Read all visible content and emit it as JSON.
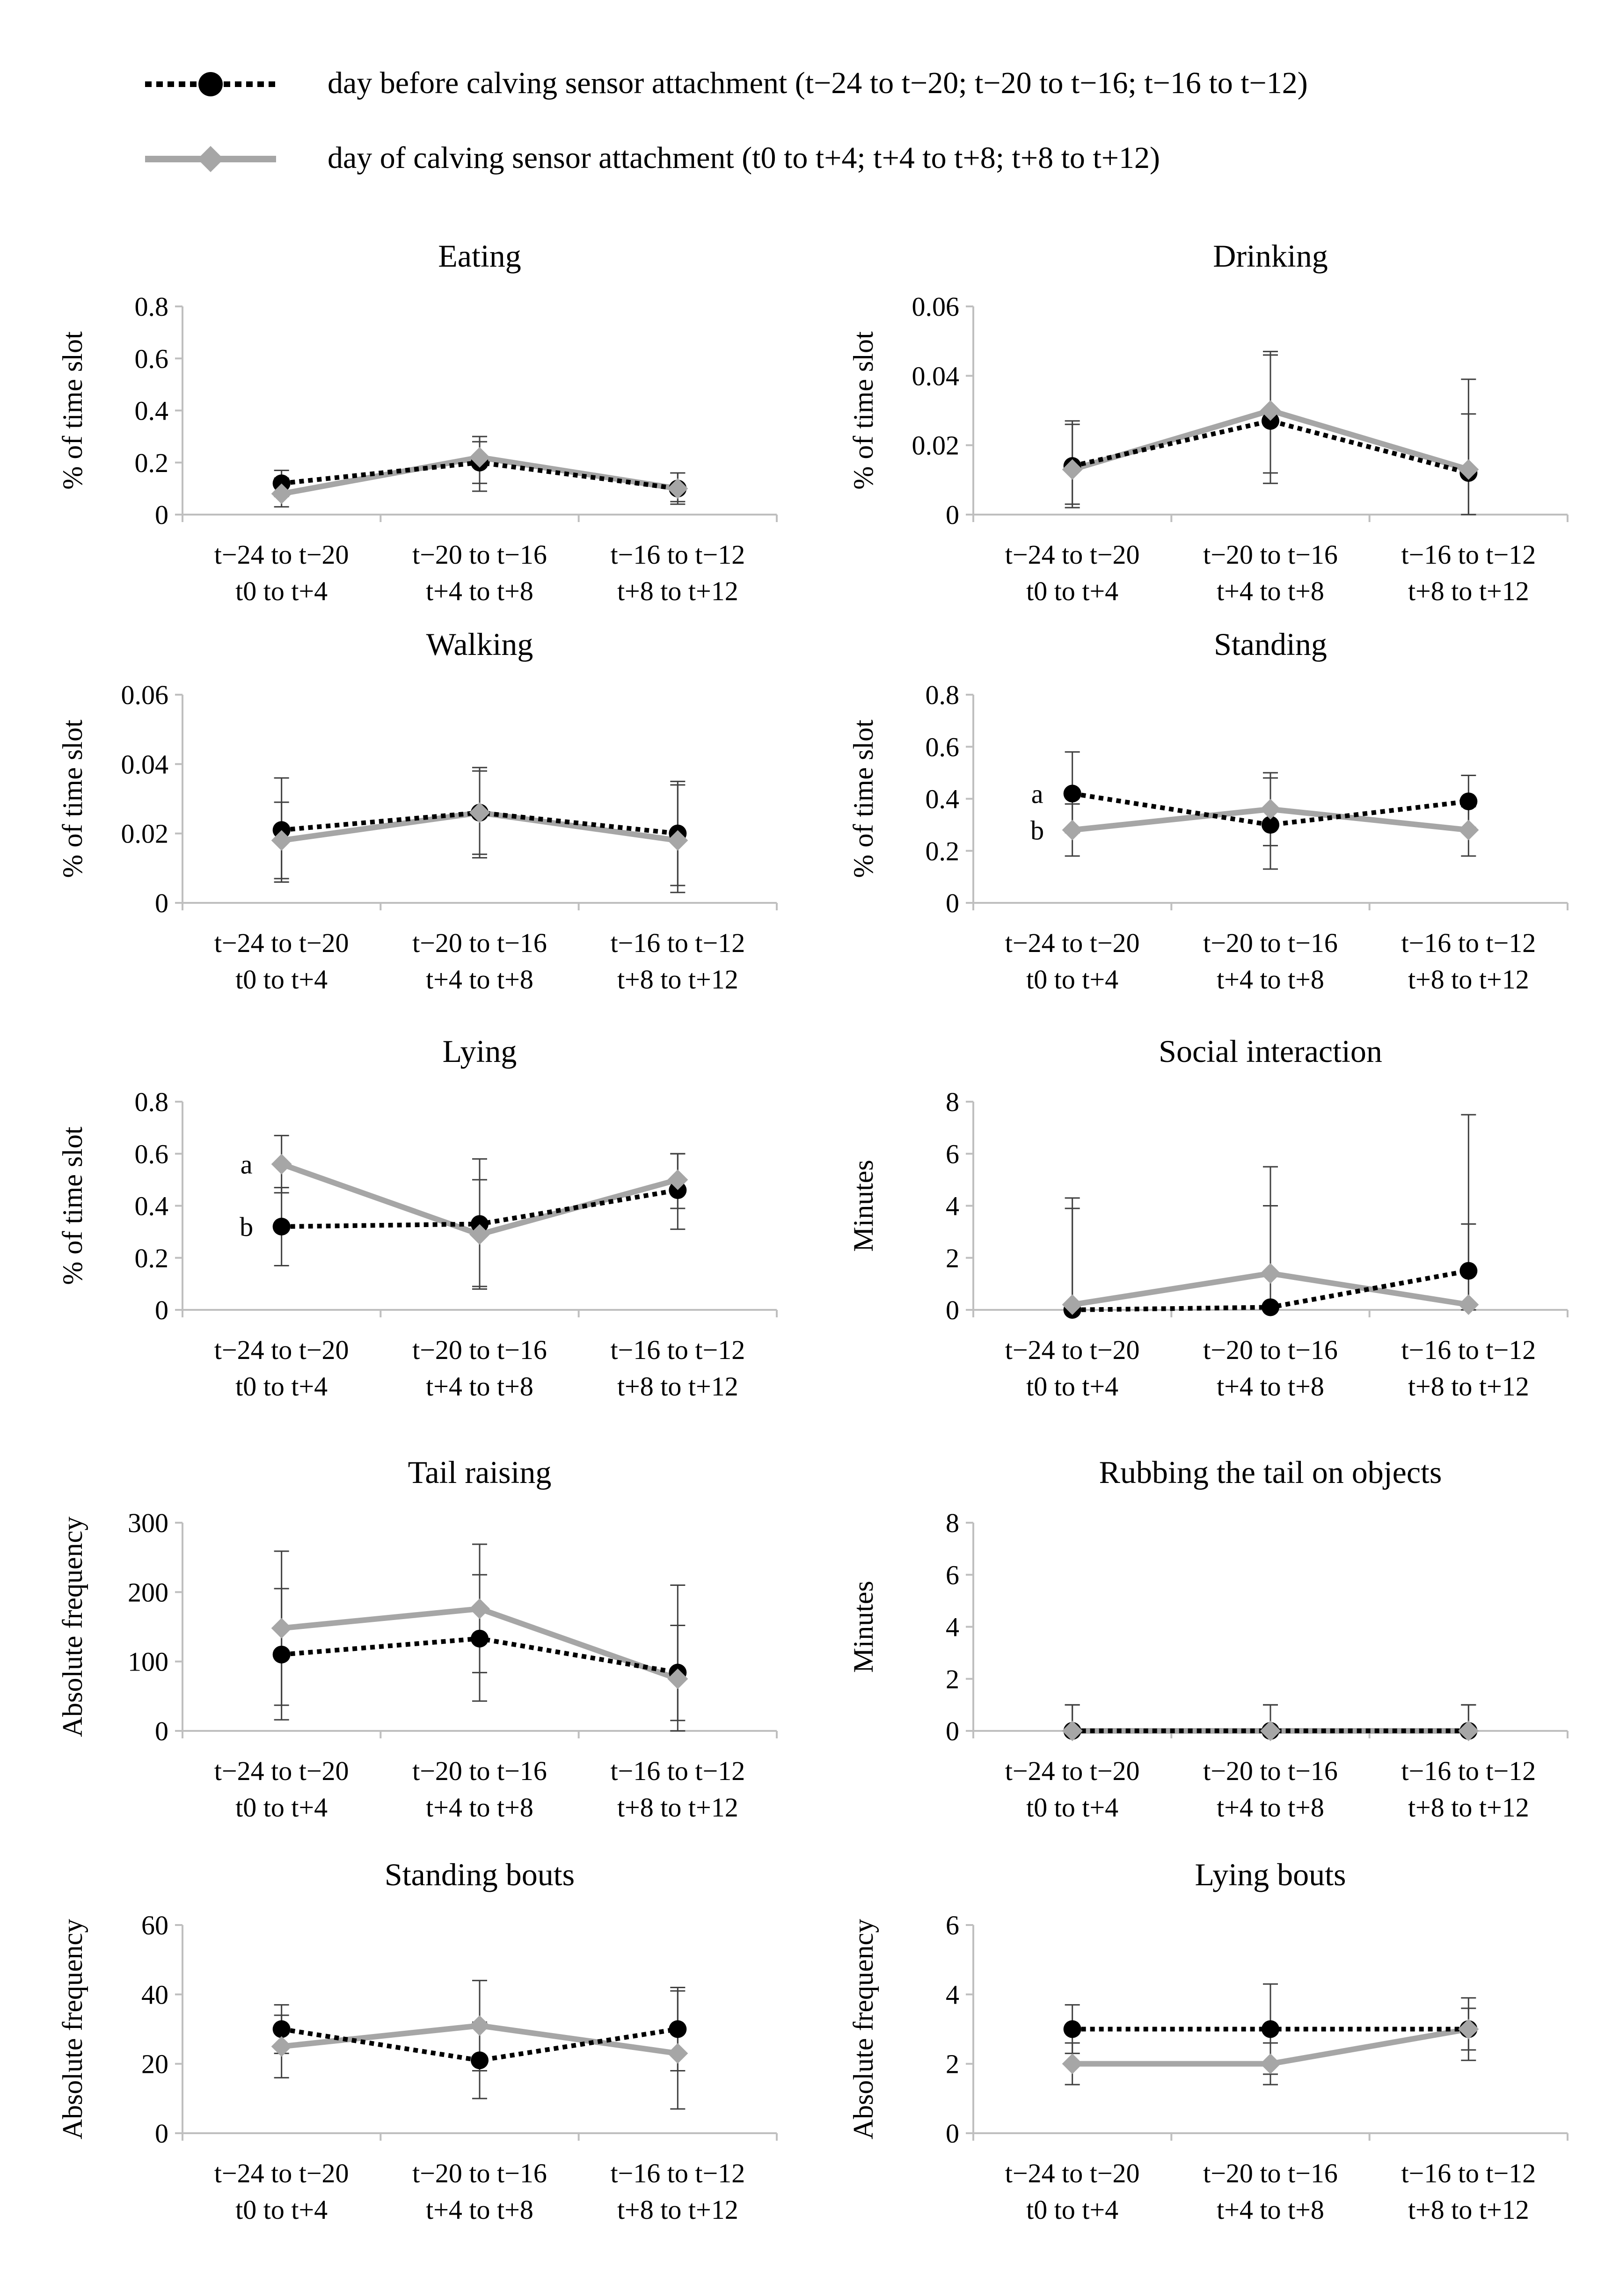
{
  "legend": [
    {
      "name": "day before calving sensor attachment (t−24 to t−20; t−20 to t−16; t−16 to t−12)",
      "style": "dotted-circle",
      "color": "#000000"
    },
    {
      "name": "day of calving sensor attachment (t0 to t+4; t+4 to t+8; t+8 to t+12)",
      "style": "solid-diamond",
      "color": "#a6a6a6"
    }
  ],
  "colors": {
    "before": "#000000",
    "of": "#a6a6a6",
    "axis": "#bfbfbf",
    "errorbar": "#404040"
  },
  "chart_data": [
    {
      "type": "line",
      "title": "Eating",
      "ylabel": "% of time slot",
      "categories": [
        [
          "t−24 to t−20",
          "t0 to t+4"
        ],
        [
          "t−20 to t−16",
          "t+4 to t+8"
        ],
        [
          "t−16 to t−12",
          "t+8 to t+12"
        ]
      ],
      "yticks": [
        "0",
        "0.2",
        "0.4",
        "0.6",
        "0.8"
      ],
      "ylim": [
        0,
        0.8
      ],
      "series": [
        {
          "name": "before",
          "values": [
            0.12,
            0.2,
            0.1
          ],
          "err_hi": [
            0.17,
            0.28,
            0.16
          ],
          "err_lo": [
            0.07,
            0.12,
            0.05
          ]
        },
        {
          "name": "of",
          "values": [
            0.08,
            0.22,
            0.1
          ],
          "err_hi": [
            0.14,
            0.3,
            0.16
          ],
          "err_lo": [
            0.03,
            0.09,
            0.04
          ]
        }
      ],
      "annotations": []
    },
    {
      "type": "line",
      "title": "Drinking",
      "ylabel": "% of time slot",
      "categories": [
        [
          "t−24 to t−20",
          "t0 to t+4"
        ],
        [
          "t−20 to t−16",
          "t+4 to t+8"
        ],
        [
          "t−16 to t−12",
          "t+8 to t+12"
        ]
      ],
      "yticks": [
        "0",
        "0.02",
        "0.04",
        "0.06"
      ],
      "ylim": [
        0,
        0.06
      ],
      "series": [
        {
          "name": "before",
          "values": [
            0.014,
            0.027,
            0.012
          ],
          "err_hi": [
            0.026,
            0.046,
            0.029
          ],
          "err_lo": [
            0.003,
            0.009,
            0.0
          ]
        },
        {
          "name": "of",
          "values": [
            0.013,
            0.03,
            0.013
          ],
          "err_hi": [
            0.027,
            0.047,
            0.039
          ],
          "err_lo": [
            0.002,
            0.012,
            0.0
          ]
        }
      ],
      "annotations": []
    },
    {
      "type": "line",
      "title": "Walking",
      "ylabel": "% of time slot",
      "categories": [
        [
          "t−24 to t−20",
          "t0 to t+4"
        ],
        [
          "t−20 to t−16",
          "t+4 to t+8"
        ],
        [
          "t−16 to t−12",
          "t+8 to t+12"
        ]
      ],
      "yticks": [
        "0",
        "0.02",
        "0.04",
        "0.06"
      ],
      "ylim": [
        0,
        0.06
      ],
      "series": [
        {
          "name": "before",
          "values": [
            0.021,
            0.026,
            0.02
          ],
          "err_hi": [
            0.029,
            0.038,
            0.034
          ],
          "err_lo": [
            0.006,
            0.014,
            0.005
          ]
        },
        {
          "name": "of",
          "values": [
            0.018,
            0.026,
            0.018
          ],
          "err_hi": [
            0.036,
            0.039,
            0.035
          ],
          "err_lo": [
            0.007,
            0.013,
            0.003
          ]
        }
      ],
      "annotations": []
    },
    {
      "type": "line",
      "title": "Standing",
      "ylabel": "% of time slot",
      "categories": [
        [
          "t−24 to t−20",
          "t0 to t+4"
        ],
        [
          "t−20 to t−16",
          "t+4 to t+8"
        ],
        [
          "t−16 to t−12",
          "t+8 to t+12"
        ]
      ],
      "yticks": [
        "0",
        "0.2",
        "0.4",
        "0.6",
        "0.8"
      ],
      "ylim": [
        0,
        0.8
      ],
      "series": [
        {
          "name": "before",
          "values": [
            0.42,
            0.3,
            0.39
          ],
          "err_hi": [
            0.58,
            0.48,
            0.49
          ],
          "err_lo": [
            0.27,
            0.13,
            0.29
          ]
        },
        {
          "name": "of",
          "values": [
            0.28,
            0.36,
            0.28
          ],
          "err_hi": [
            0.38,
            0.5,
            0.37
          ],
          "err_lo": [
            0.18,
            0.22,
            0.18
          ]
        }
      ],
      "annotations": [
        {
          "text": "a",
          "series": "before",
          "index": 0
        },
        {
          "text": "b",
          "series": "of",
          "index": 0
        }
      ]
    },
    {
      "type": "line",
      "title": "Lying",
      "ylabel": "% of time slot",
      "categories": [
        [
          "t−24 to t−20",
          "t0 to t+4"
        ],
        [
          "t−20 to t−16",
          "t+4 to t+8"
        ],
        [
          "t−16 to t−12",
          "t+8 to t+12"
        ]
      ],
      "yticks": [
        "0",
        "0.2",
        "0.4",
        "0.6",
        "0.8"
      ],
      "ylim": [
        0,
        0.8
      ],
      "series": [
        {
          "name": "before",
          "values": [
            0.32,
            0.33,
            0.46
          ],
          "err_hi": [
            0.47,
            0.58,
            0.6
          ],
          "err_lo": [
            0.17,
            0.09,
            0.31
          ]
        },
        {
          "name": "of",
          "values": [
            0.56,
            0.29,
            0.5
          ],
          "err_hi": [
            0.67,
            0.5,
            0.6
          ],
          "err_lo": [
            0.45,
            0.08,
            0.39
          ]
        }
      ],
      "annotations": [
        {
          "text": "a",
          "series": "of",
          "index": 0
        },
        {
          "text": "b",
          "series": "before",
          "index": 0
        }
      ]
    },
    {
      "type": "line",
      "title": "Social interaction",
      "ylabel": "Minutes",
      "categories": [
        [
          "t−24 to t−20",
          "t0 to t+4"
        ],
        [
          "t−20 to t−16",
          "t+4 to t+8"
        ],
        [
          "t−16 to t−12",
          "t+8 to t+12"
        ]
      ],
      "yticks": [
        "0",
        "2",
        "4",
        "6",
        "8"
      ],
      "ylim": [
        0,
        8
      ],
      "series": [
        {
          "name": "before",
          "values": [
            0.0,
            0.1,
            1.5
          ],
          "err_hi": [
            3.9,
            4.0,
            3.3
          ],
          "err_lo": [
            0.0,
            0.0,
            0.0
          ]
        },
        {
          "name": "of",
          "values": [
            0.2,
            1.4,
            0.2
          ],
          "err_hi": [
            4.3,
            5.5,
            7.5
          ],
          "err_lo": [
            0.0,
            0.0,
            0.0
          ]
        }
      ],
      "annotations": []
    },
    {
      "type": "line",
      "title": "Tail raising",
      "ylabel": "Absolute frequency",
      "categories": [
        [
          "t−24 to t−20",
          "t0 to t+4"
        ],
        [
          "t−20 to t−16",
          "t+4 to t+8"
        ],
        [
          "t−16 to t−12",
          "t+8 to t+12"
        ]
      ],
      "yticks": [
        "0",
        "100",
        "200",
        "300"
      ],
      "ylim": [
        0,
        300
      ],
      "series": [
        {
          "name": "before",
          "values": [
            110,
            133,
            84
          ],
          "err_hi": [
            205,
            225,
            152
          ],
          "err_lo": [
            16,
            43,
            15
          ]
        },
        {
          "name": "of",
          "values": [
            148,
            176,
            75
          ],
          "err_hi": [
            259,
            269,
            210
          ],
          "err_lo": [
            37,
            84,
            0
          ]
        }
      ],
      "annotations": []
    },
    {
      "type": "line",
      "title": "Rubbing the tail on objects",
      "ylabel": "Minutes",
      "categories": [
        [
          "t−24 to t−20",
          "t0 to t+4"
        ],
        [
          "t−20 to t−16",
          "t+4 to t+8"
        ],
        [
          "t−16 to t−12",
          "t+8 to t+12"
        ]
      ],
      "yticks": [
        "0",
        "2",
        "4",
        "6",
        "8"
      ],
      "ylim": [
        0,
        8
      ],
      "series": [
        {
          "name": "before",
          "values": [
            0,
            0,
            0
          ],
          "err_hi": [
            1,
            1,
            1
          ],
          "err_lo": [
            0,
            0,
            0
          ]
        },
        {
          "name": "of",
          "values": [
            0,
            0,
            0
          ],
          "err_hi": [
            1,
            1,
            1
          ],
          "err_lo": [
            0,
            0,
            0
          ]
        }
      ],
      "annotations": []
    },
    {
      "type": "line",
      "title": "Standing bouts",
      "ylabel": "Absolute frequency",
      "categories": [
        [
          "t−24 to t−20",
          "t0 to t+4"
        ],
        [
          "t−20 to t−16",
          "t+4 to t+8"
        ],
        [
          "t−16 to t−12",
          "t+8 to t+12"
        ]
      ],
      "yticks": [
        "0",
        "20",
        "40",
        "60"
      ],
      "ylim": [
        0,
        60
      ],
      "series": [
        {
          "name": "before",
          "values": [
            30,
            21,
            30
          ],
          "err_hi": [
            37,
            32,
            41
          ],
          "err_lo": [
            23,
            10,
            18
          ]
        },
        {
          "name": "of",
          "values": [
            25,
            31,
            23
          ],
          "err_hi": [
            34,
            44,
            42
          ],
          "err_lo": [
            16,
            18,
            7
          ]
        }
      ],
      "annotations": []
    },
    {
      "type": "line",
      "title": "Lying bouts",
      "ylabel": "Absolute frequency",
      "categories": [
        [
          "t−24 to t−20",
          "t0 to t+4"
        ],
        [
          "t−20 to t−16",
          "t+4 to t+8"
        ],
        [
          "t−16 to t−12",
          "t+8 to t+12"
        ]
      ],
      "yticks": [
        "0",
        "2",
        "4",
        "6"
      ],
      "ylim": [
        0,
        6
      ],
      "series": [
        {
          "name": "before",
          "values": [
            3,
            3,
            3
          ],
          "err_hi": [
            3.7,
            4.3,
            3.9
          ],
          "err_lo": [
            2.3,
            1.7,
            2.1
          ]
        },
        {
          "name": "of",
          "values": [
            2,
            2,
            3
          ],
          "err_hi": [
            2.6,
            2.6,
            3.6
          ],
          "err_lo": [
            1.4,
            1.4,
            2.4
          ]
        }
      ],
      "annotations": []
    }
  ]
}
